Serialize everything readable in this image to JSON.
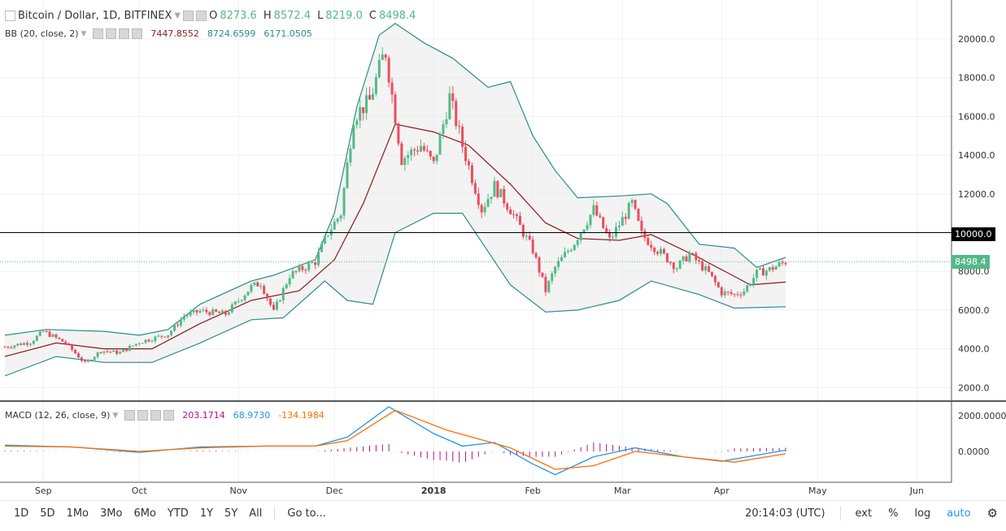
{
  "symbol": {
    "title": "Bitcoin / Dollar, 1D, BITFINEX",
    "ohlc": {
      "o_label": "O",
      "o": "8273.6",
      "h_label": "H",
      "h": "8572.4",
      "l_label": "L",
      "l": "8219.0",
      "c_label": "C",
      "c": "8498.4"
    }
  },
  "bb": {
    "label": "BB (20, close, 2)",
    "basis": "7447.8552",
    "upper": "8724.6599",
    "lower": "6171.0505"
  },
  "macd": {
    "label": "MACD (12, 26, close, 9)",
    "hist": "203.1714",
    "macd": "68.9730",
    "signal": "-134.1984"
  },
  "price_axis": {
    "labels": [
      "20000.0",
      "18000.0",
      "16000.0",
      "14000.0",
      "12000.0",
      "10000.0",
      "8000.0",
      "6000.0",
      "4000.0",
      "2000.0"
    ]
  },
  "macd_axis": {
    "labels": [
      "2000.0000",
      "0.0000"
    ]
  },
  "price_tags": {
    "level": "10000.0",
    "last": "8498.4"
  },
  "time_axis": {
    "labels": [
      "Sep",
      "Oct",
      "Nov",
      "Dec",
      "2018",
      "Feb",
      "Mar",
      "Apr",
      "May",
      "Jun"
    ]
  },
  "toolbar": {
    "timeframes": [
      "1D",
      "5D",
      "1Mo",
      "3Mo",
      "6Mo",
      "YTD",
      "1Y",
      "5Y",
      "All"
    ],
    "goto": "Go to...",
    "clock": "20:14:03 (UTC)",
    "ext": "ext",
    "percent": "%",
    "log": "log",
    "auto": "auto"
  },
  "colors": {
    "up": "#53b987",
    "down": "#eb4d5c",
    "bb_band": "#2b8c8c",
    "bb_basis": "#8b1a1a",
    "macd_line": "#2196f3",
    "signal_line": "#ff6d00",
    "hist": "#b5127d"
  },
  "chart_data": {
    "type": "candlestick",
    "ylim": [
      1000,
      21500
    ],
    "level_line": 10000,
    "last_price": 8498.4,
    "anchors": [
      {
        "x": "Aug 20",
        "close": 4100
      },
      {
        "x": "Aug 28",
        "close": 4350
      },
      {
        "x": "Sep 1",
        "close": 4900
      },
      {
        "x": "Sep 8",
        "close": 4300
      },
      {
        "x": "Sep 14",
        "close": 3250
      },
      {
        "x": "Sep 19",
        "close": 3900
      },
      {
        "x": "Sep 25",
        "close": 3800
      },
      {
        "x": "Oct 1",
        "close": 4350
      },
      {
        "x": "Oct 10",
        "close": 4750
      },
      {
        "x": "Oct 15",
        "close": 5700
      },
      {
        "x": "Oct 20",
        "close": 5950
      },
      {
        "x": "Oct 28",
        "close": 5800
      },
      {
        "x": "Nov 5",
        "close": 7200
      },
      {
        "x": "Nov 8",
        "close": 7400
      },
      {
        "x": "Nov 12",
        "close": 5900
      },
      {
        "x": "Nov 17",
        "close": 7800
      },
      {
        "x": "Nov 25",
        "close": 8500
      },
      {
        "x": "Nov 29",
        "close": 10000
      },
      {
        "x": "Dec 3",
        "close": 11000
      },
      {
        "x": "Dec 7",
        "close": 16000
      },
      {
        "x": "Dec 12",
        "close": 16800
      },
      {
        "x": "Dec 16",
        "close": 19000
      },
      {
        "x": "Dec 17",
        "close": 19300
      },
      {
        "x": "Dec 22",
        "close": 13800
      },
      {
        "x": "Dec 28",
        "close": 14500
      },
      {
        "x": "Jan 1",
        "close": 13500
      },
      {
        "x": "Jan 6",
        "close": 17000
      },
      {
        "x": "Jan 10",
        "close": 14500
      },
      {
        "x": "Jan 16",
        "close": 11200
      },
      {
        "x": "Jan 20",
        "close": 12400
      },
      {
        "x": "Jan 25",
        "close": 11200
      },
      {
        "x": "Feb 1",
        "close": 9100
      },
      {
        "x": "Feb 5",
        "close": 7000
      },
      {
        "x": "Feb 8",
        "close": 8200
      },
      {
        "x": "Feb 14",
        "close": 9500
      },
      {
        "x": "Feb 20",
        "close": 11200
      },
      {
        "x": "Feb 25",
        "close": 9600
      },
      {
        "x": "Mar 4",
        "close": 11500
      },
      {
        "x": "Mar 7",
        "close": 9900
      },
      {
        "x": "Mar 12",
        "close": 9100
      },
      {
        "x": "Mar 18",
        "close": 8200
      },
      {
        "x": "Mar 22",
        "close": 8900
      },
      {
        "x": "Mar 28",
        "close": 7900
      },
      {
        "x": "Apr 1",
        "close": 6900
      },
      {
        "x": "Apr 5",
        "close": 6800
      },
      {
        "x": "Apr 8",
        "close": 7000
      },
      {
        "x": "Apr 12",
        "close": 7900
      },
      {
        "x": "Apr 16",
        "close": 8100
      },
      {
        "x": "Apr 21",
        "close": 8498
      }
    ],
    "bb_upper": [
      {
        "x": "Aug 20",
        "y": 4700
      },
      {
        "x": "Sep 2",
        "y": 5000
      },
      {
        "x": "Sep 20",
        "y": 4900
      },
      {
        "x": "Oct 1",
        "y": 4700
      },
      {
        "x": "Oct 10",
        "y": 5000
      },
      {
        "x": "Oct 20",
        "y": 6300
      },
      {
        "x": "Nov 5",
        "y": 7500
      },
      {
        "x": "Nov 12",
        "y": 7800
      },
      {
        "x": "Nov 25",
        "y": 8600
      },
      {
        "x": "Dec 1",
        "y": 11000
      },
      {
        "x": "Dec 8",
        "y": 16500
      },
      {
        "x": "Dec 15",
        "y": 20200
      },
      {
        "x": "Dec 20",
        "y": 20800
      },
      {
        "x": "Dec 29",
        "y": 19800
      },
      {
        "x": "Jan 7",
        "y": 19000
      },
      {
        "x": "Jan 18",
        "y": 17500
      },
      {
        "x": "Jan 25",
        "y": 17800
      },
      {
        "x": "Feb 1",
        "y": 15000
      },
      {
        "x": "Feb 8",
        "y": 13200
      },
      {
        "x": "Feb 15",
        "y": 11800
      },
      {
        "x": "Mar 1",
        "y": 11900
      },
      {
        "x": "Mar 10",
        "y": 12000
      },
      {
        "x": "Mar 15",
        "y": 11500
      },
      {
        "x": "Mar 25",
        "y": 9400
      },
      {
        "x": "Apr 5",
        "y": 9200
      },
      {
        "x": "Apr 12",
        "y": 8200
      },
      {
        "x": "Apr 21",
        "y": 8725
      }
    ],
    "bb_basis": [
      {
        "x": "Aug 20",
        "y": 3600
      },
      {
        "x": "Sep 5",
        "y": 4300
      },
      {
        "x": "Sep 20",
        "y": 4000
      },
      {
        "x": "Oct 5",
        "y": 4000
      },
      {
        "x": "Oct 20",
        "y": 5300
      },
      {
        "x": "Nov 5",
        "y": 6500
      },
      {
        "x": "Nov 20",
        "y": 7000
      },
      {
        "x": "Dec 1",
        "y": 8600
      },
      {
        "x": "Dec 10",
        "y": 11500
      },
      {
        "x": "Dec 20",
        "y": 15600
      },
      {
        "x": "Jan 1",
        "y": 15200
      },
      {
        "x": "Jan 12",
        "y": 14500
      },
      {
        "x": "Jan 25",
        "y": 12500
      },
      {
        "x": "Feb 5",
        "y": 10500
      },
      {
        "x": "Feb 15",
        "y": 9700
      },
      {
        "x": "Feb 28",
        "y": 9600
      },
      {
        "x": "Mar 10",
        "y": 9900
      },
      {
        "x": "Mar 25",
        "y": 8700
      },
      {
        "x": "Apr 10",
        "y": 7300
      },
      {
        "x": "Apr 21",
        "y": 7448
      }
    ],
    "bb_lower": [
      {
        "x": "Aug 20",
        "y": 2600
      },
      {
        "x": "Sep 5",
        "y": 3600
      },
      {
        "x": "Sep 20",
        "y": 3300
      },
      {
        "x": "Oct 5",
        "y": 3300
      },
      {
        "x": "Oct 20",
        "y": 4300
      },
      {
        "x": "Nov 5",
        "y": 5500
      },
      {
        "x": "Nov 15",
        "y": 5600
      },
      {
        "x": "Nov 28",
        "y": 7500
      },
      {
        "x": "Dec 5",
        "y": 6500
      },
      {
        "x": "Dec 13",
        "y": 6300
      },
      {
        "x": "Dec 20",
        "y": 10000
      },
      {
        "x": "Jan 1",
        "y": 11000
      },
      {
        "x": "Jan 10",
        "y": 11000
      },
      {
        "x": "Jan 25",
        "y": 7300
      },
      {
        "x": "Feb 5",
        "y": 5900
      },
      {
        "x": "Feb 15",
        "y": 6000
      },
      {
        "x": "Feb 28",
        "y": 6500
      },
      {
        "x": "Mar 10",
        "y": 7500
      },
      {
        "x": "Mar 25",
        "y": 6800
      },
      {
        "x": "Apr 5",
        "y": 6100
      },
      {
        "x": "Apr 21",
        "y": 6171
      }
    ],
    "macd_ylim": [
      -1400,
      3000
    ],
    "macd_line": [
      {
        "x": "Aug 20",
        "y": 350
      },
      {
        "x": "Sep 10",
        "y": 250
      },
      {
        "x": "Oct 1",
        "y": -50
      },
      {
        "x": "Oct 20",
        "y": 250
      },
      {
        "x": "Nov 10",
        "y": 300
      },
      {
        "x": "Nov 25",
        "y": 300
      },
      {
        "x": "Dec 5",
        "y": 800
      },
      {
        "x": "Dec 18",
        "y": 2500
      },
      {
        "x": "Jan 1",
        "y": 1000
      },
      {
        "x": "Jan 10",
        "y": 300
      },
      {
        "x": "Jan 20",
        "y": 500
      },
      {
        "x": "Feb 1",
        "y": -700
      },
      {
        "x": "Feb 8",
        "y": -1300
      },
      {
        "x": "Feb 20",
        "y": -300
      },
      {
        "x": "Mar 5",
        "y": 200
      },
      {
        "x": "Mar 20",
        "y": -300
      },
      {
        "x": "Apr 1",
        "y": -550
      },
      {
        "x": "Apr 21",
        "y": 69
      }
    ],
    "signal_line": [
      {
        "x": "Aug 20",
        "y": 300
      },
      {
        "x": "Sep 10",
        "y": 250
      },
      {
        "x": "Oct 1",
        "y": 0
      },
      {
        "x": "Oct 20",
        "y": 200
      },
      {
        "x": "Nov 10",
        "y": 300
      },
      {
        "x": "Nov 25",
        "y": 300
      },
      {
        "x": "Dec 5",
        "y": 600
      },
      {
        "x": "Dec 20",
        "y": 2300
      },
      {
        "x": "Jan 5",
        "y": 1200
      },
      {
        "x": "Jan 15",
        "y": 700
      },
      {
        "x": "Jan 25",
        "y": 200
      },
      {
        "x": "Feb 8",
        "y": -1000
      },
      {
        "x": "Feb 20",
        "y": -800
      },
      {
        "x": "Mar 5",
        "y": 0
      },
      {
        "x": "Mar 20",
        "y": -300
      },
      {
        "x": "Apr 5",
        "y": -600
      },
      {
        "x": "Apr 21",
        "y": -134
      }
    ]
  }
}
